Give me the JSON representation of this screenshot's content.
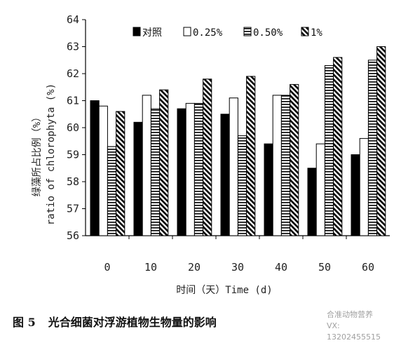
{
  "chart_data": {
    "type": "bar",
    "categories": [
      "0",
      "10",
      "20",
      "30",
      "40",
      "50",
      "60"
    ],
    "series": [
      {
        "name": "对照",
        "pattern": "solid",
        "values": [
          61.0,
          60.2,
          60.7,
          60.5,
          59.4,
          58.5,
          59.0
        ]
      },
      {
        "name": "0.25%",
        "pattern": "white",
        "values": [
          60.8,
          61.2,
          60.9,
          61.1,
          61.2,
          59.4,
          59.6
        ]
      },
      {
        "name": "0.50%",
        "pattern": "horizontal-stripes",
        "values": [
          59.3,
          60.7,
          60.9,
          59.7,
          61.2,
          62.3,
          62.5
        ]
      },
      {
        "name": "1%",
        "pattern": "diagonal-stripes",
        "values": [
          60.6,
          61.4,
          61.8,
          61.9,
          61.6,
          62.6,
          63.0
        ]
      }
    ],
    "yticks": [
      "56",
      "57",
      "58",
      "59",
      "60",
      "61",
      "62",
      "63",
      "64"
    ],
    "ylim": [
      56,
      64
    ],
    "xlabel": "时间（天）Time (d)",
    "ylabel_cn": "绿藻所占比例（%）",
    "ylabel_en": "ratio of chlorophyta (%)",
    "legend_position": "top",
    "grid": false
  },
  "caption": {
    "figure_number": "图 5",
    "title": "光合细菌对浮游植物生物量的影响"
  },
  "watermark": {
    "line1": "合准动物营养",
    "line2": "VX: 13202455515"
  }
}
